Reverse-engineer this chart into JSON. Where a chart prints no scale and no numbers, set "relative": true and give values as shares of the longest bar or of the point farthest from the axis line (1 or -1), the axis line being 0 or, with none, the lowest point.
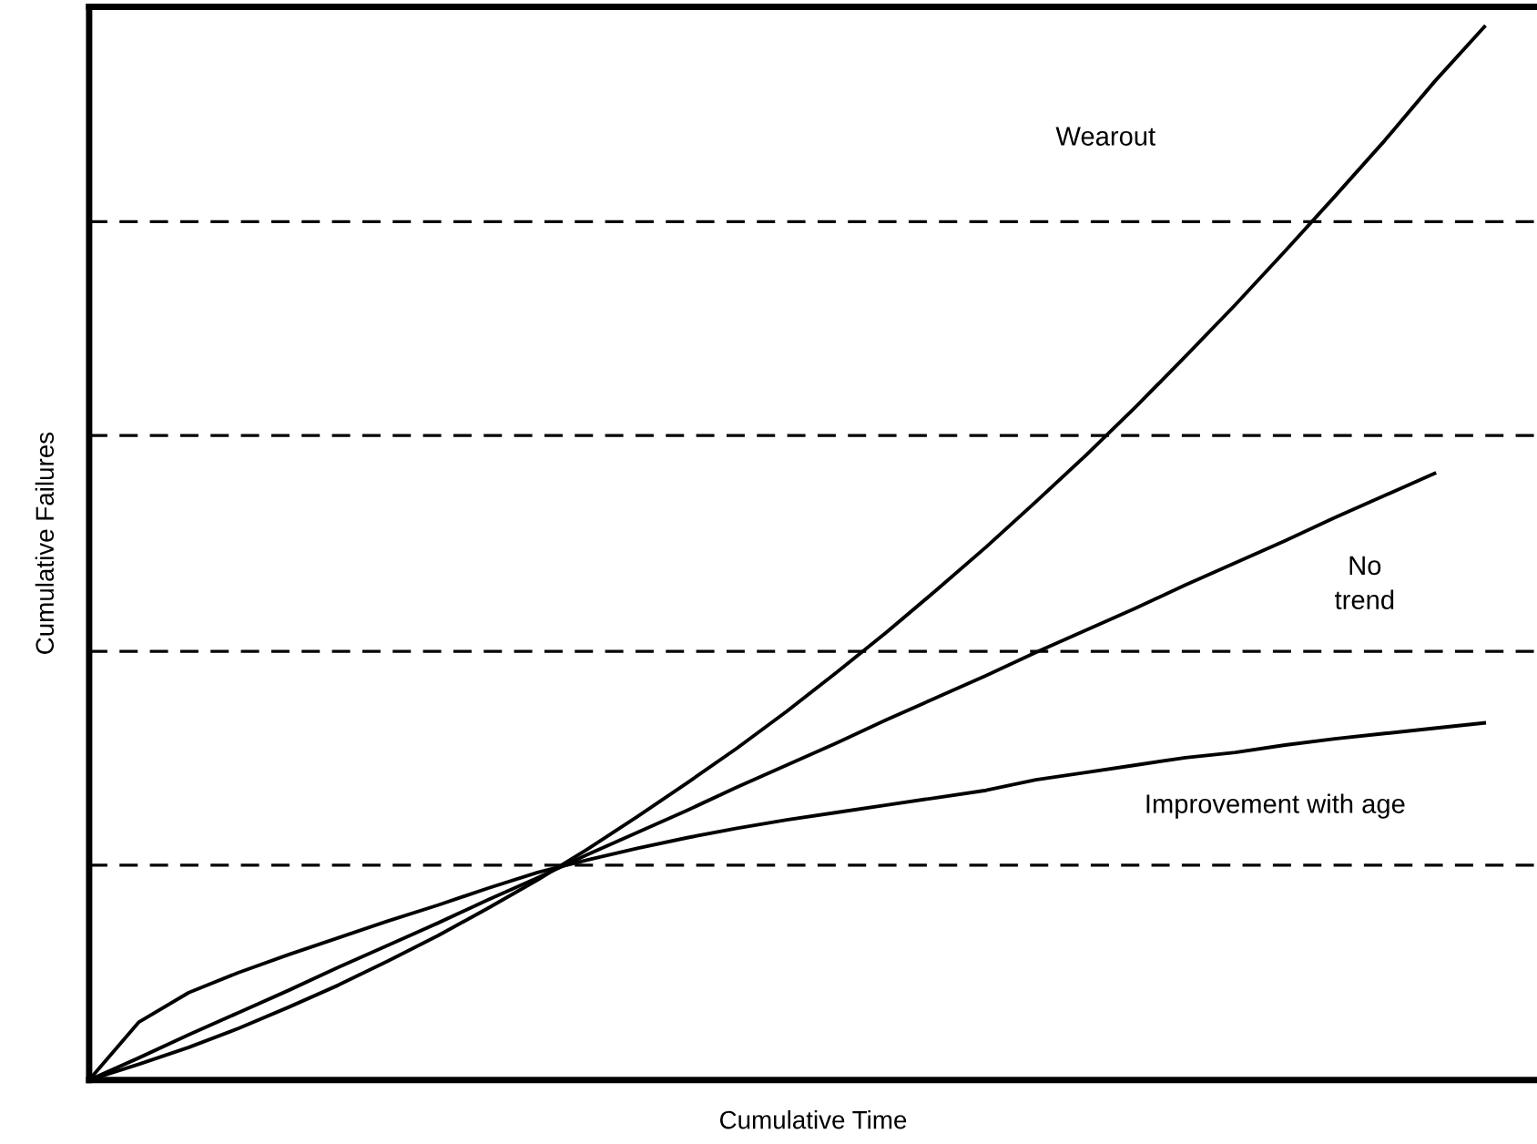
{
  "chart_data": {
    "type": "line",
    "relative": true,
    "xlabel": "Cumulative Time",
    "ylabel": "Cumulative Failures",
    "marker": "none",
    "line_style": "solid",
    "categories": [
      null,
      null,
      null,
      null,
      null,
      null,
      null,
      null,
      null,
      null,
      null,
      null,
      null,
      null,
      null,
      null,
      null,
      null,
      null,
      null,
      null,
      null,
      null,
      null,
      null,
      null,
      null,
      null,
      null
    ],
    "series": [
      {
        "color": "#000000",
        "values": [
          0,
          0.015,
          0.031,
          0.049,
          0.069,
          0.09,
          0.113,
          0.137,
          0.163,
          0.19,
          0.219,
          0.25,
          0.282,
          0.315,
          0.35,
          0.387,
          0.425,
          0.465,
          0.506,
          0.549,
          0.593,
          0.639,
          0.687,
          0.736,
          0.787,
          0.839,
          0.892,
          0.948,
          1.0
        ]
      },
      {
        "color": "#000000",
        "values": [
          0,
          0.021,
          0.043,
          0.064,
          0.085,
          0.107,
          0.128,
          0.149,
          0.171,
          0.192,
          0.214,
          0.235,
          0.256,
          0.278,
          0.299,
          0.32,
          0.342,
          0.363,
          0.384,
          0.406,
          0.427,
          0.448,
          0.47,
          0.491,
          0.512,
          0.534,
          0.555,
          0.576,
          null
        ]
      },
      {
        "color": "#000000",
        "values": [
          0,
          0.055,
          0.083,
          0.102,
          0.119,
          0.135,
          0.151,
          0.166,
          0.182,
          0.197,
          0.209,
          0.22,
          0.23,
          0.239,
          0.247,
          0.254,
          0.261,
          0.268,
          0.275,
          0.285,
          0.292,
          0.299,
          0.306,
          0.311,
          0.318,
          0.324,
          0.329,
          0.334,
          0.339
        ]
      }
    ],
    "ref_lines": [
      {
        "axis": "y",
        "value": 0.204,
        "color": "#000000",
        "line_style": "dashed"
      },
      {
        "axis": "y",
        "value": 0.407,
        "color": "#000000",
        "line_style": "dashed"
      },
      {
        "axis": "y",
        "value": 0.612,
        "color": "#000000",
        "line_style": "dashed"
      },
      {
        "axis": "y",
        "value": 0.815,
        "color": "#000000",
        "line_style": "dashed"
      }
    ],
    "annotations": [
      "Wearout",
      "No\ntrend",
      "Improvement with age"
    ]
  }
}
